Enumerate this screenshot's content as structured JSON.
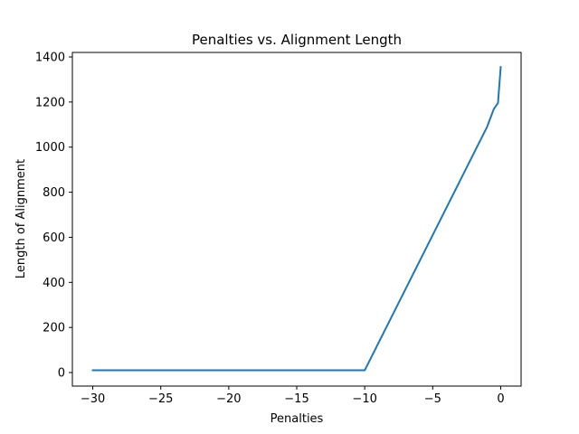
{
  "chart_data": {
    "type": "line",
    "title": "Penalties vs. Alignment Length",
    "xlabel": "Penalties",
    "ylabel": "Length of Alignment",
    "xlim": [
      -31.5,
      1.5
    ],
    "ylim": [
      -60,
      1420
    ],
    "xticks": [
      -30,
      -25,
      -20,
      -15,
      -10,
      -5,
      0
    ],
    "yticks": [
      0,
      200,
      400,
      600,
      800,
      1000,
      1200,
      1400
    ],
    "xtick_labels": [
      "−30",
      "−25",
      "−20",
      "−15",
      "−10",
      "−5",
      "0"
    ],
    "ytick_labels": [
      "0",
      "200",
      "400",
      "600",
      "800",
      "1000",
      "1200",
      "1400"
    ],
    "grid": false,
    "series": [
      {
        "color": "#1f77b4",
        "x": [
          -30,
          -10,
          -1,
          -0.5,
          -0.2,
          0
        ],
        "y": [
          10,
          10,
          1090,
          1170,
          1195,
          1355
        ]
      }
    ]
  }
}
